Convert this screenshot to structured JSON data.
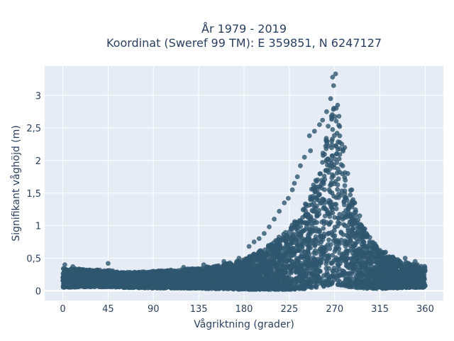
{
  "chart_data": {
    "type": "scatter",
    "title_line1": "År 1979 - 2019",
    "title_line2": "Koordinat (Sweref 99 TM): E 359851, N 6247127",
    "xlabel": "Vågriktning (grader)",
    "ylabel": "Signifikant våghöjd (m)",
    "xlim": [
      -18,
      378
    ],
    "ylim": [
      -0.15,
      3.45
    ],
    "x_ticks": [
      0,
      45,
      90,
      135,
      180,
      225,
      270,
      315,
      360
    ],
    "x_tick_labels": [
      "0",
      "45",
      "90",
      "135",
      "180",
      "225",
      "270",
      "315",
      "360"
    ],
    "y_ticks": [
      0,
      0.5,
      1,
      1.5,
      2,
      2.5,
      3
    ],
    "y_tick_labels": [
      "0",
      "0,5",
      "1",
      "1,5",
      "2",
      "2,5",
      "3"
    ],
    "grid": true,
    "marker_color": "#30566f",
    "plot_bg": "#e5ecf6",
    "envelope": {
      "direction": [
        0,
        20,
        45,
        60,
        90,
        120,
        150,
        180,
        200,
        225,
        240,
        255,
        262,
        268,
        272,
        278,
        285,
        295,
        310,
        330,
        345,
        360
      ],
      "upper": [
        0.35,
        0.33,
        0.32,
        0.28,
        0.3,
        0.33,
        0.38,
        0.48,
        0.65,
        0.95,
        1.3,
        1.9,
        2.4,
        2.9,
        2.95,
        2.3,
        1.6,
        1.05,
        0.7,
        0.5,
        0.42,
        0.38
      ],
      "lower": [
        0.05,
        0.06,
        0.06,
        0.05,
        0.04,
        0.04,
        0.03,
        0.02,
        0.02,
        0.02,
        0.03,
        0.05,
        0.08,
        0.1,
        0.1,
        0.07,
        0.05,
        0.04,
        0.03,
        0.04,
        0.05,
        0.05
      ]
    },
    "outliers": [
      [
        271,
        3.33
      ],
      [
        268,
        3.28
      ],
      [
        269,
        3.15
      ],
      [
        266,
        2.95
      ],
      [
        273,
        2.85
      ],
      [
        262,
        2.75
      ],
      [
        258,
        2.62
      ],
      [
        255,
        2.55
      ],
      [
        250,
        2.45
      ],
      [
        245,
        2.38
      ],
      [
        240,
        2.05
      ],
      [
        236,
        1.92
      ],
      [
        230,
        1.65
      ],
      [
        228,
        1.55
      ],
      [
        224,
        1.42
      ],
      [
        220,
        1.35
      ],
      [
        215,
        1.22
      ],
      [
        210,
        1.1
      ],
      [
        205,
        0.98
      ],
      [
        200,
        0.88
      ],
      [
        195,
        0.8
      ],
      [
        190,
        0.75
      ],
      [
        185,
        0.68
      ],
      [
        280,
        2.2
      ],
      [
        283,
        1.8
      ],
      [
        287,
        1.55
      ],
      [
        290,
        1.35
      ],
      [
        295,
        1.15
      ],
      [
        300,
        0.95
      ],
      [
        305,
        0.82
      ],
      [
        310,
        0.72
      ],
      [
        315,
        0.62
      ],
      [
        320,
        0.58
      ],
      [
        325,
        0.52
      ],
      [
        340,
        0.5
      ],
      [
        350,
        0.45
      ],
      [
        45,
        0.42
      ],
      [
        2,
        0.4
      ],
      [
        10,
        0.37
      ],
      [
        120,
        0.36
      ],
      [
        140,
        0.4
      ],
      [
        160,
        0.45
      ],
      [
        175,
        0.5
      ],
      [
        233,
        1.75
      ],
      [
        246,
        2.15
      ]
    ]
  }
}
